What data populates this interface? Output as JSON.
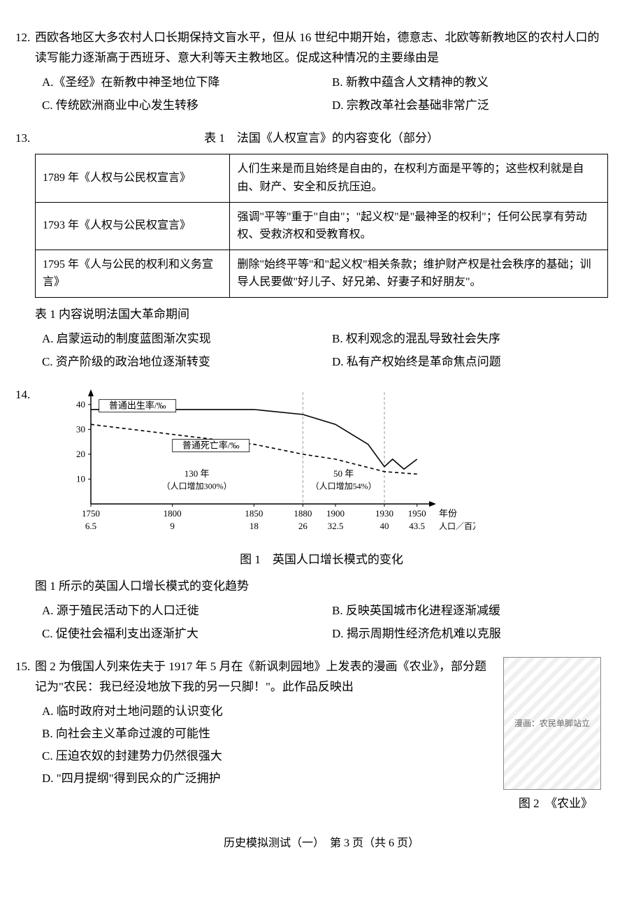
{
  "q12": {
    "num": "12.",
    "stem": "西欧各地区大多农村人口长期保持文盲水平，但从 16 世纪中期开始，德意志、北欧等新教地区的农村人口的读写能力逐渐高于西班牙、意大利等天主教地区。促成这种情况的主要缘由是",
    "A": "A.《圣经》在新教中神圣地位下降",
    "B": "B. 新教中蕴含人文精神的教义",
    "C": "C. 传统欧洲商业中心发生转移",
    "D": "D. 宗教改革社会基础非常广泛"
  },
  "q13": {
    "num": "13.",
    "table_caption": "表 1　法国《人权宣言》的内容变化（部分）",
    "rows": [
      {
        "l": "1789 年《人权与公民权宣言》",
        "r": "人们生来是而且始终是自由的，在权利方面是平等的；这些权利就是自由、财产、安全和反抗压迫。"
      },
      {
        "l": "1793 年《人权与公民权宣言》",
        "r": "强调\"平等\"重于\"自由\"；\"起义权\"是\"最神圣的权利\"；任何公民享有劳动权、受救济权和受教育权。"
      },
      {
        "l": "1795 年《人与公民的权利和义务宣言》",
        "r": "删除\"始终平等\"和\"起义权\"相关条款；维护财产权是社会秩序的基础；训导人民要做\"好儿子、好兄弟、好妻子和好朋友\"。"
      }
    ],
    "stem2": "表 1 内容说明法国大革命期间",
    "A": "A. 启蒙运动的制度蓝图渐次实现",
    "B": "B. 权利观念的混乱导致社会失序",
    "C": "C. 资产阶级的政治地位逐渐转变",
    "D": "D. 私有产权始终是革命焦点问题"
  },
  "q14": {
    "num": "14.",
    "chart": {
      "type": "line",
      "title": "图 1　英国人口增长模式的变化",
      "x_years": [
        "1750",
        "1800",
        "1850",
        "1880",
        "1900",
        "1930",
        "1950"
      ],
      "x_label_right": "年份",
      "x2_values": [
        "6.5",
        "9",
        "18",
        "26",
        "32.5",
        "40",
        "43.5"
      ],
      "x2_label_right": "人口／百万人",
      "y_ticks": [
        10,
        20,
        30,
        40
      ],
      "ylim": [
        0,
        45
      ],
      "series": [
        {
          "name": "普通出生率/‰",
          "style": "solid",
          "color": "#000000",
          "points": [
            [
              1750,
              38
            ],
            [
              1800,
              38
            ],
            [
              1850,
              38
            ],
            [
              1880,
              36
            ],
            [
              1900,
              32
            ],
            [
              1920,
              24
            ],
            [
              1930,
              15
            ],
            [
              1935,
              18
            ],
            [
              1942,
              14
            ],
            [
              1950,
              18
            ]
          ]
        },
        {
          "name": "普通死亡率/‰",
          "style": "dashed",
          "color": "#000000",
          "points": [
            [
              1750,
              32
            ],
            [
              1800,
              28
            ],
            [
              1850,
              24
            ],
            [
              1880,
              20
            ],
            [
              1900,
              18
            ],
            [
              1930,
              13
            ],
            [
              1950,
              12
            ]
          ]
        }
      ],
      "phase_dividers_x": [
        1880,
        1930
      ],
      "phase_labels": [
        {
          "text": "130 年",
          "sub": "（人口增加300%）",
          "x_center": 1815
        },
        {
          "text": "50 年",
          "sub": "（人口增加54%）",
          "x_center": 1905
        }
      ],
      "axis_color": "#000000",
      "grid_color": "#999999",
      "background_color": "#ffffff",
      "font_size_pt": 11
    },
    "stem2": "图 1 所示的英国人口增长模式的变化趋势",
    "A": "A. 源于殖民活动下的人口迁徙",
    "B": "B. 反映英国城市化进程逐渐减缓",
    "C": "C. 促使社会福利支出逐渐扩大",
    "D": "D. 揭示周期性经济危机难以克服"
  },
  "q15": {
    "num": "15.",
    "stem": "图 2 为俄国人列来佐夫于 1917 年 5 月在《新讽刺园地》上发表的漫画《农业》，部分题记为\"农民：我已经没地放下我的另一只脚！\"。此作品反映出",
    "A": "A. 临时政府对土地问题的认识变化",
    "B": "B. 向社会主义革命过渡的可能性",
    "C": "C. 压迫农奴的封建势力仍然很强大",
    "D": "D. \"四月提纲\"得到民众的广泛拥护",
    "img_caption": "图 2　《农业》",
    "img_alt": "漫画：农民单脚站立"
  },
  "footer": "历史模拟测试（一）　第 3 页（共 6 页）"
}
